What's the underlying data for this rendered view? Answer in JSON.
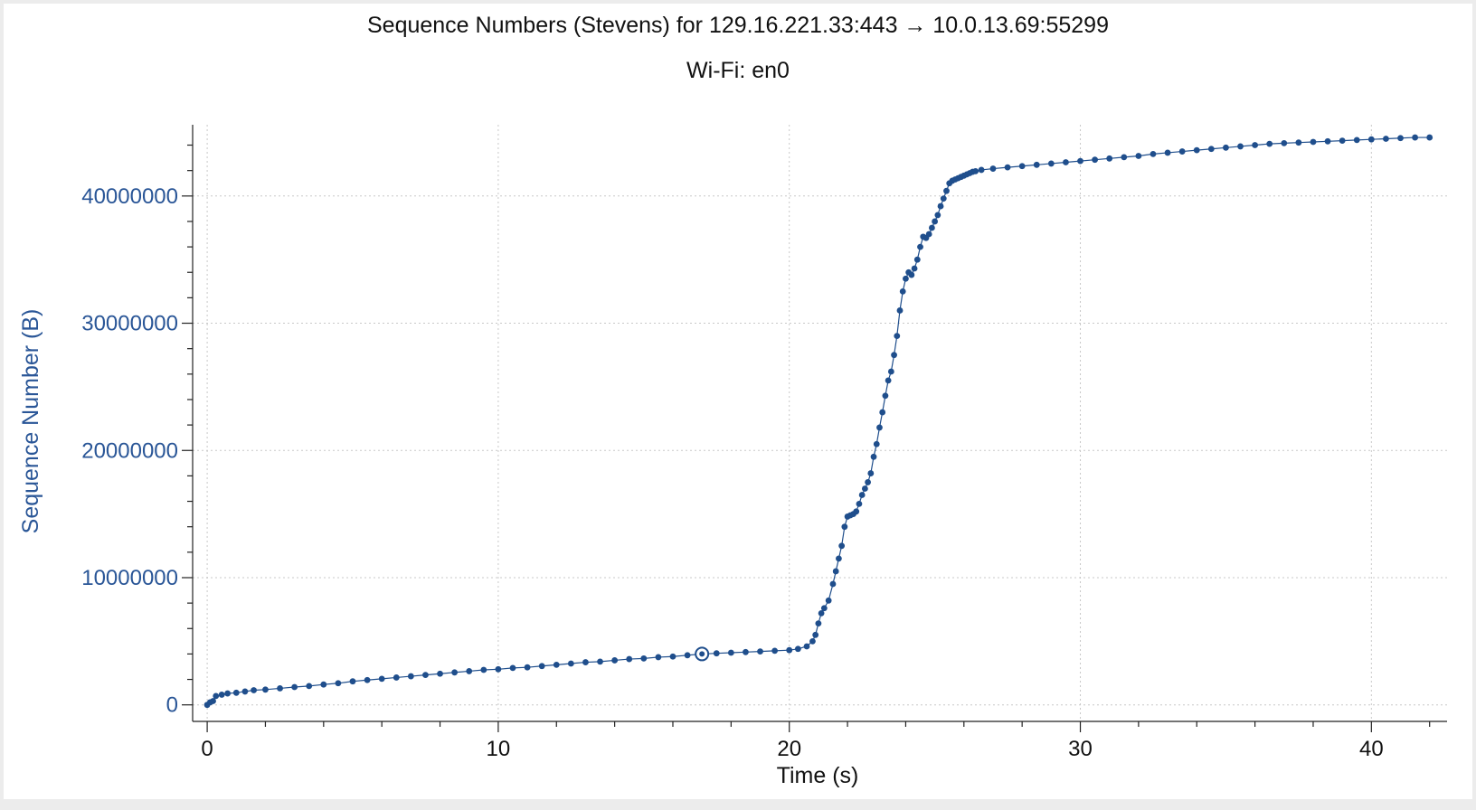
{
  "chart_data": {
    "type": "scatter",
    "title": "Sequence Numbers (Stevens) for 129.16.221.33:443 → 10.0.13.69:55299",
    "subtitle": "Wi-Fi: en0",
    "xlabel": "Time (s)",
    "ylabel": "Sequence Number (B)",
    "xlim": [
      -0.5,
      42.6
    ],
    "ylim": [
      -1300000,
      45600000
    ],
    "x_ticks": [
      0,
      10,
      20,
      30,
      40
    ],
    "x_tick_labels": [
      "0",
      "10",
      "20",
      "30",
      "40"
    ],
    "y_ticks": [
      0,
      10000000,
      20000000,
      30000000,
      40000000
    ],
    "y_tick_labels": [
      "0",
      "10000000",
      "20000000",
      "30000000",
      "40000000"
    ],
    "grid": true,
    "colors": {
      "series": "#1f4e8c",
      "axis_label": "#2a5697",
      "x_axis_label": "#111111"
    },
    "highlight_point": {
      "x": 17.0,
      "y": 4000000
    },
    "series": [
      {
        "values_x": [
          0.0,
          0.1,
          0.2,
          0.3,
          0.5,
          0.7,
          1.0,
          1.3,
          1.6,
          2.0,
          2.5,
          3.0,
          3.5,
          4.0,
          4.5,
          5.0,
          5.5,
          6.0,
          6.5,
          7.0,
          7.5,
          8.0,
          8.5,
          9.0,
          9.5,
          10.0,
          10.5,
          11.0,
          11.5,
          12.0,
          12.5,
          13.0,
          13.5,
          14.0,
          14.5,
          15.0,
          15.5,
          16.0,
          16.5,
          17.0,
          17.5,
          18.0,
          18.5,
          19.0,
          19.5,
          20.0,
          20.3,
          20.6,
          20.8,
          20.9,
          21.0,
          21.1,
          21.2,
          21.35,
          21.5,
          21.6,
          21.7,
          21.8,
          21.9,
          22.0,
          22.1,
          22.2,
          22.3,
          22.4,
          22.5,
          22.6,
          22.7,
          22.8,
          22.9,
          23.0,
          23.1,
          23.2,
          23.3,
          23.4,
          23.5,
          23.6,
          23.7,
          23.8,
          23.9,
          24.0,
          24.1,
          24.2,
          24.3,
          24.4,
          24.5,
          24.6,
          24.7,
          24.8,
          24.9,
          25.0,
          25.1,
          25.2,
          25.3,
          25.4,
          25.5,
          25.6,
          25.7,
          25.8,
          25.9,
          26.0,
          26.1,
          26.2,
          26.3,
          26.4,
          26.6,
          27.0,
          27.5,
          28.0,
          28.5,
          29.0,
          29.5,
          30.0,
          30.5,
          31.0,
          31.5,
          32.0,
          32.5,
          33.0,
          33.5,
          34.0,
          34.5,
          35.0,
          35.5,
          36.0,
          36.5,
          37.0,
          37.5,
          38.0,
          38.5,
          39.0,
          39.5,
          40.0,
          40.5,
          41.0,
          41.5,
          42.0
        ],
        "values_y": [
          0,
          200000,
          300000,
          700000,
          800000,
          900000,
          950000,
          1050000,
          1150000,
          1200000,
          1300000,
          1400000,
          1480000,
          1600000,
          1700000,
          1850000,
          1950000,
          2050000,
          2150000,
          2250000,
          2350000,
          2450000,
          2550000,
          2650000,
          2750000,
          2800000,
          2900000,
          2950000,
          3050000,
          3150000,
          3250000,
          3350000,
          3400000,
          3500000,
          3600000,
          3650000,
          3750000,
          3800000,
          3900000,
          4000000,
          4050000,
          4100000,
          4150000,
          4200000,
          4250000,
          4300000,
          4400000,
          4600000,
          5000000,
          5500000,
          6400000,
          7200000,
          7600000,
          8200000,
          9500000,
          10500000,
          11500000,
          12500000,
          14000000,
          14800000,
          14900000,
          15000000,
          15200000,
          15800000,
          16500000,
          17000000,
          17500000,
          18200000,
          19500000,
          20500000,
          21800000,
          23000000,
          24300000,
          25500000,
          26200000,
          27500000,
          29000000,
          31000000,
          32500000,
          33500000,
          34000000,
          33800000,
          34300000,
          35000000,
          36000000,
          36800000,
          36700000,
          37000000,
          37500000,
          38000000,
          38500000,
          39200000,
          39800000,
          40400000,
          41000000,
          41200000,
          41300000,
          41400000,
          41500000,
          41600000,
          41700000,
          41800000,
          41900000,
          41950000,
          42050000,
          42150000,
          42250000,
          42350000,
          42450000,
          42550000,
          42650000,
          42750000,
          42850000,
          42950000,
          43050000,
          43150000,
          43300000,
          43400000,
          43500000,
          43600000,
          43700000,
          43800000,
          43900000,
          44000000,
          44100000,
          44150000,
          44200000,
          44250000,
          44300000,
          44350000,
          44400000,
          44450000,
          44500000,
          44550000,
          44600000,
          44600000
        ]
      }
    ]
  }
}
